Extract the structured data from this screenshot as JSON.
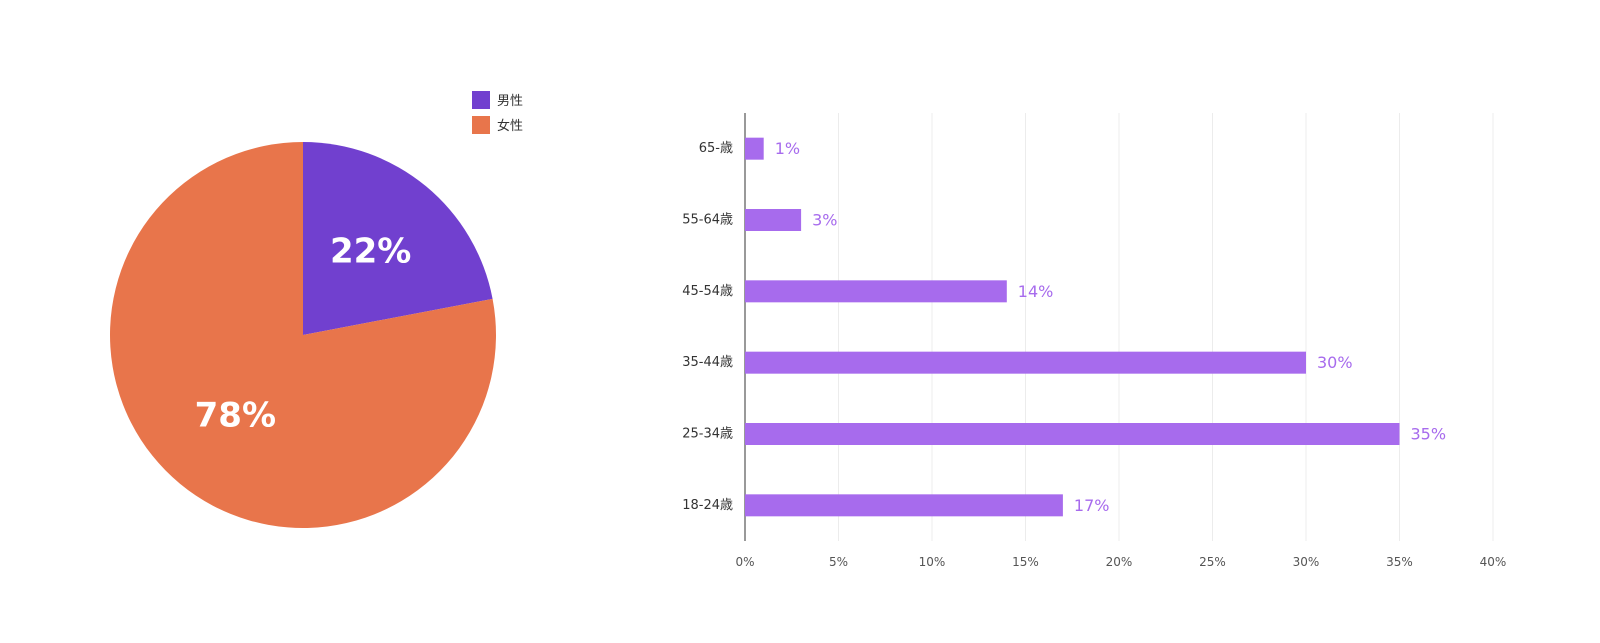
{
  "chart_data": [
    {
      "type": "pie",
      "slices": [
        {
          "label": "男性",
          "value": 22,
          "display": "22%",
          "color": "#7140cf"
        },
        {
          "label": "女性",
          "value": 78,
          "display": "78%",
          "color": "#e8754b"
        }
      ],
      "legend": [
        "男性",
        "女性"
      ],
      "legend_position": "top-right",
      "start_angle": "12 o'clock",
      "direction": "clockwise"
    },
    {
      "type": "bar",
      "orientation": "horizontal",
      "categories": [
        "65-歳",
        "55-64歳",
        "45-54歳",
        "35-44歳",
        "25-34歳",
        "18-24歳"
      ],
      "values": [
        1,
        3,
        14,
        30,
        35,
        17
      ],
      "data_labels": [
        "1%",
        "3%",
        "14%",
        "30%",
        "35%",
        "17%"
      ],
      "xlim": [
        0,
        40
      ],
      "xticks": [
        0,
        5,
        10,
        15,
        20,
        25,
        30,
        35,
        40
      ],
      "xtick_labels": [
        "0%",
        "5%",
        "10%",
        "15%",
        "20%",
        "25%",
        "30%",
        "35%",
        "40%"
      ],
      "grid": "vertical",
      "bar_color": "#a76bed"
    }
  ]
}
